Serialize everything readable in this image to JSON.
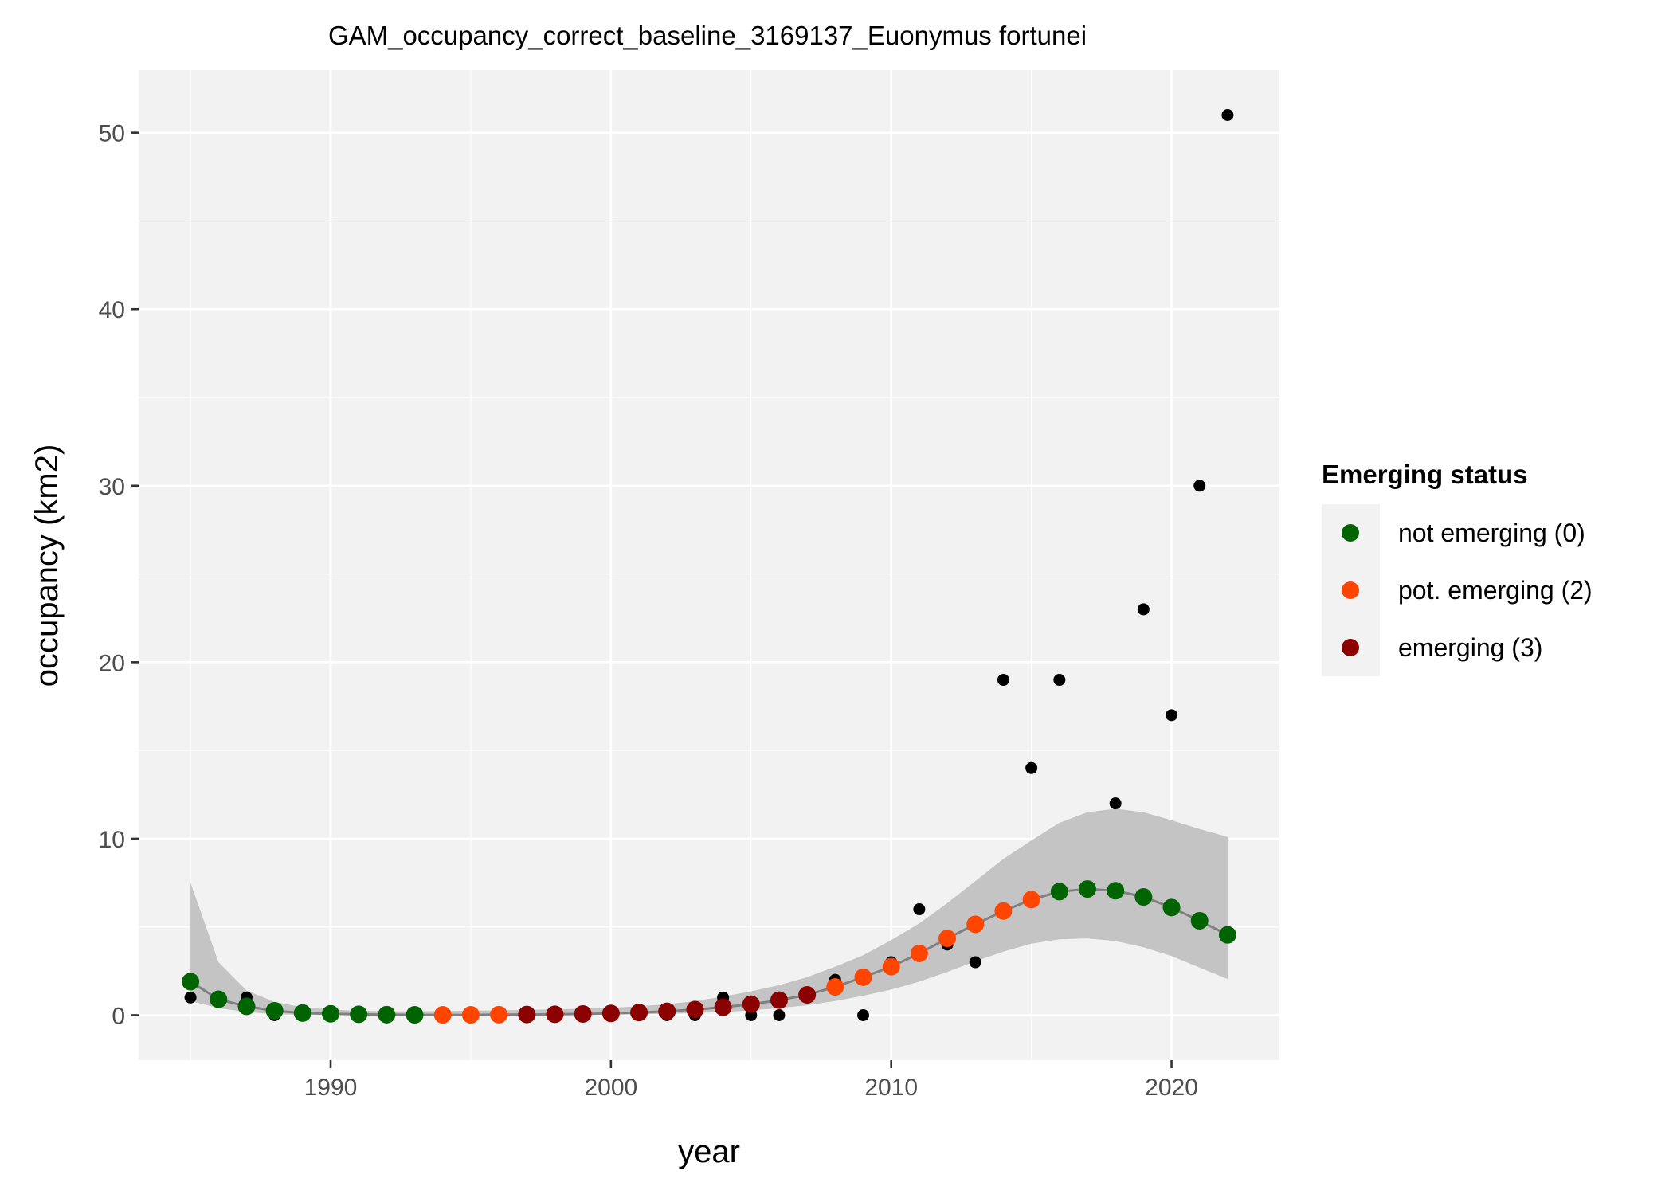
{
  "chart_data": {
    "type": "scatter",
    "title": "GAM_occupancy_correct_baseline_3169137_Euonymus fortunei",
    "xlabel": "year",
    "ylabel": "occupancy (km2)",
    "xlim": [
      1983.15,
      2023.85
    ],
    "ylim": [
      -2.55,
      53.55
    ],
    "x_ticks": [
      1990,
      2000,
      2010,
      2020
    ],
    "y_ticks": [
      0,
      10,
      20,
      30,
      40,
      50
    ],
    "grid": true,
    "legend": {
      "title": "Emerging status",
      "position": "right",
      "entries": [
        {
          "label": "not emerging (0)",
          "color": "#006400"
        },
        {
          "label": "pot. emerging (2)",
          "color": "#ff4500"
        },
        {
          "label": "emerging (3)",
          "color": "#8b0000"
        }
      ]
    },
    "observed": {
      "color": "#000000",
      "x": [
        1985,
        1987,
        1988,
        2002,
        2003,
        2004,
        2005,
        2006,
        2008,
        2009,
        2010,
        2011,
        2012,
        2013,
        2014,
        2015,
        2016,
        2018,
        2019,
        2020,
        2021,
        2022
      ],
      "y": [
        1,
        1,
        0,
        0,
        0,
        1,
        0,
        0,
        2,
        0,
        3,
        6,
        4,
        3,
        19,
        14,
        19,
        12,
        23,
        17,
        30,
        51
      ]
    },
    "fitted": {
      "line_color": "#808080",
      "band_color": "#c4c4c4",
      "x": [
        1985,
        1986,
        1987,
        1988,
        1989,
        1990,
        1991,
        1992,
        1993,
        1994,
        1995,
        1996,
        1997,
        1998,
        1999,
        2000,
        2001,
        2002,
        2003,
        2004,
        2005,
        2006,
        2007,
        2008,
        2009,
        2010,
        2011,
        2012,
        2013,
        2014,
        2015,
        2016,
        2017,
        2018,
        2019,
        2020,
        2021,
        2022
      ],
      "y": [
        1.9,
        0.9,
        0.5,
        0.25,
        0.12,
        0.08,
        0.05,
        0.03,
        0.02,
        0.02,
        0.02,
        0.03,
        0.04,
        0.05,
        0.07,
        0.1,
        0.15,
        0.22,
        0.32,
        0.45,
        0.62,
        0.85,
        1.15,
        1.6,
        2.15,
        2.75,
        3.5,
        4.35,
        5.15,
        5.9,
        6.55,
        7.0,
        7.15,
        7.05,
        6.7,
        6.1,
        5.35,
        4.55
      ],
      "lower": [
        0.8,
        0.4,
        0.18,
        0.06,
        0.02,
        0.01,
        0.01,
        0.0,
        0.0,
        0.0,
        0.0,
        0.0,
        0.01,
        0.01,
        0.02,
        0.03,
        0.05,
        0.08,
        0.12,
        0.18,
        0.27,
        0.4,
        0.56,
        0.8,
        1.1,
        1.45,
        1.9,
        2.45,
        3.05,
        3.6,
        4.05,
        4.3,
        4.35,
        4.2,
        3.85,
        3.35,
        2.7,
        2.05
      ],
      "upper": [
        7.5,
        3.0,
        1.4,
        0.75,
        0.45,
        0.32,
        0.25,
        0.22,
        0.22,
        0.23,
        0.25,
        0.28,
        0.3,
        0.33,
        0.37,
        0.42,
        0.5,
        0.62,
        0.8,
        1.05,
        1.35,
        1.7,
        2.15,
        2.75,
        3.4,
        4.25,
        5.2,
        6.35,
        7.6,
        8.85,
        9.9,
        10.9,
        11.5,
        11.7,
        11.5,
        11.05,
        10.55,
        10.1
      ],
      "status": [
        0,
        0,
        0,
        0,
        0,
        0,
        0,
        0,
        0,
        2,
        2,
        2,
        3,
        3,
        3,
        3,
        3,
        3,
        3,
        3,
        3,
        3,
        3,
        2,
        2,
        2,
        2,
        2,
        2,
        2,
        2,
        0,
        0,
        0,
        0,
        0,
        0,
        0
      ]
    },
    "status_colors": {
      "0": "#006400",
      "2": "#ff4500",
      "3": "#8b0000"
    }
  }
}
